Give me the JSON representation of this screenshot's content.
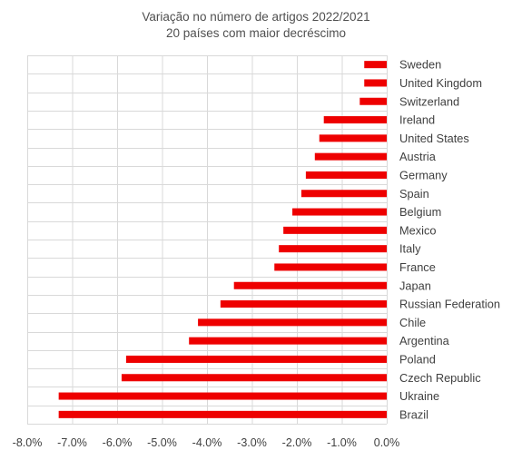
{
  "chart_data": {
    "type": "bar",
    "orientation": "horizontal",
    "title": "Variação no número de artigos 2022/2021",
    "subtitle": "20 países com maior decréscimo",
    "categories": [
      "Sweden",
      "United Kingdom",
      "Switzerland",
      "Ireland",
      "United States",
      "Austria",
      "Germany",
      "Spain",
      "Belgium",
      "Mexico",
      "Italy",
      "France",
      "Japan",
      "Russian Federation",
      "Chile",
      "Argentina",
      "Poland",
      "Czech Republic",
      "Ukraine",
      "Brazil"
    ],
    "values": [
      -0.5,
      -0.5,
      -0.6,
      -1.4,
      -1.5,
      -1.6,
      -1.8,
      -1.9,
      -2.1,
      -2.3,
      -2.4,
      -2.5,
      -3.4,
      -3.7,
      -4.2,
      -4.4,
      -5.8,
      -5.9,
      -7.3,
      -7.3
    ],
    "xlim": [
      -8.0,
      0.0
    ],
    "ticks": [
      -8.0,
      -7.0,
      -6.0,
      -5.0,
      -4.0,
      -3.0,
      -2.0,
      -1.0,
      0.0
    ],
    "tick_labels": [
      "-8.0%",
      "-7.0%",
      "-6.0%",
      "-5.0%",
      "-4.0%",
      "-3.0%",
      "-2.0%",
      "-1.0%",
      "0.0%"
    ],
    "grid": true,
    "legend": "none",
    "bar_color": "#ee0000",
    "grid_color": "#d9d9d9"
  }
}
